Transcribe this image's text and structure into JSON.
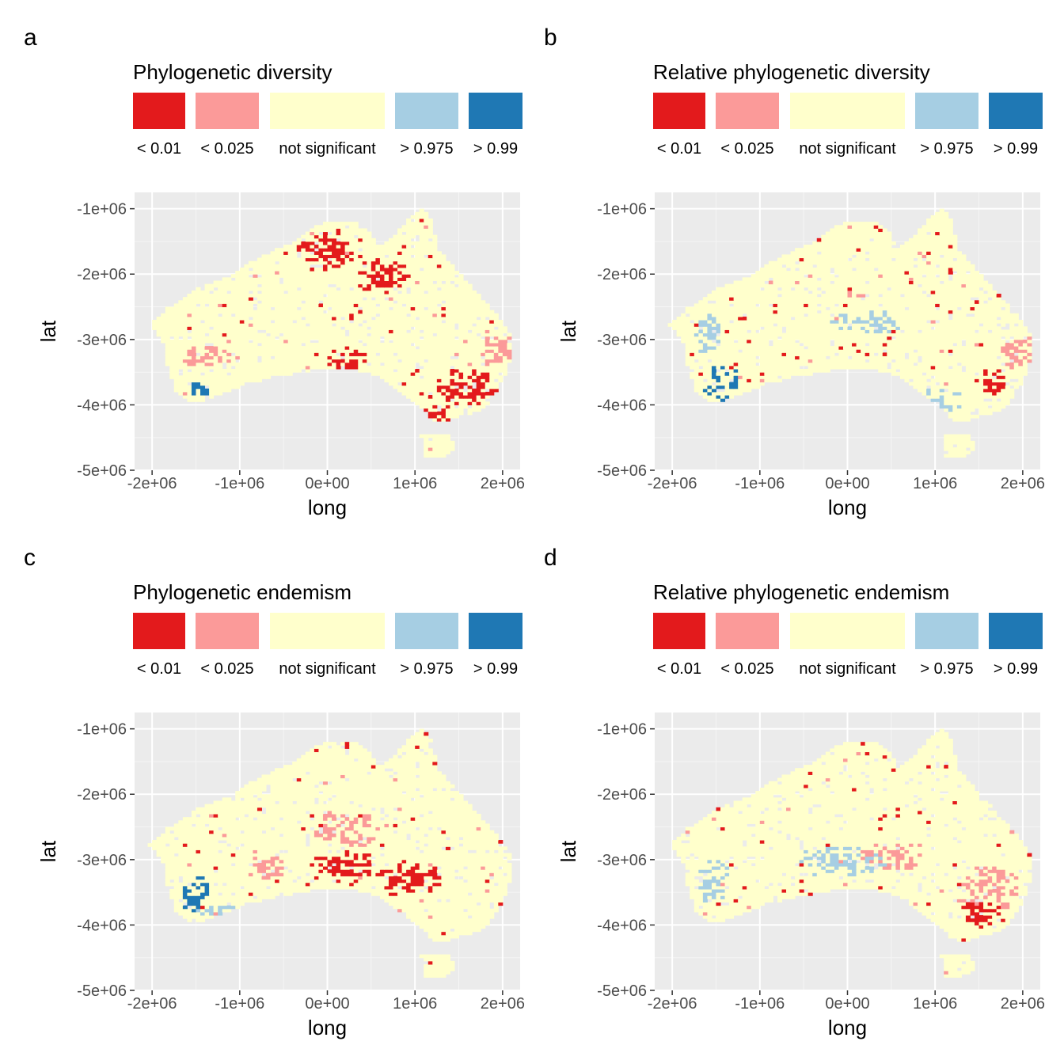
{
  "legend": {
    "labels": [
      "< 0.01",
      "< 0.025",
      "not significant",
      "> 0.975",
      "> 0.99"
    ],
    "colors": [
      "#e31a1c",
      "#fb9a99",
      "#ffffcc",
      "#a6cee3",
      "#1f78b4"
    ]
  },
  "chart_data": [
    {
      "type": "heatmap",
      "panel_letter": "a",
      "legend_title": "Phylogenetic diversity",
      "xlabel": "long",
      "ylabel": "lat",
      "x_ticks": [
        "-2e+06",
        "-1e+06",
        "0e+00",
        "1e+06",
        "2e+06"
      ],
      "y_ticks": [
        "-1e+06",
        "-2e+06",
        "-3e+06",
        "-4e+06",
        "-5e+06"
      ],
      "xlim": [
        -2200000,
        2200000
      ],
      "ylim": [
        -5000000,
        -750000
      ],
      "grid": true,
      "hotspots": [
        {
          "category": "< 0.01",
          "x": 0,
          "y": -1600000,
          "rx": 400000,
          "ry": 350000
        },
        {
          "category": "< 0.01",
          "x": 1550000,
          "y": -3700000,
          "rx": 400000,
          "ry": 300000
        },
        {
          "category": "< 0.025",
          "x": -1350000,
          "y": -3200000,
          "rx": 350000,
          "ry": 250000
        },
        {
          "category": "< 0.01",
          "x": 600000,
          "y": -2000000,
          "rx": 300000,
          "ry": 300000
        },
        {
          "category": "< 0.01",
          "x": 200000,
          "y": -3300000,
          "rx": 250000,
          "ry": 200000
        },
        {
          "category": "< 0.025",
          "x": 1900000,
          "y": -3100000,
          "rx": 200000,
          "ry": 300000
        },
        {
          "category": "> 0.99",
          "x": -1500000,
          "y": -3750000,
          "rx": 150000,
          "ry": 150000
        },
        {
          "category": "< 0.01",
          "x": 1200000,
          "y": -4100000,
          "rx": 250000,
          "ry": 150000
        }
      ]
    },
    {
      "type": "heatmap",
      "panel_letter": "b",
      "legend_title": "Relative phylogenetic diversity",
      "xlabel": "long",
      "ylabel": "lat",
      "x_ticks": [
        "-2e+06",
        "-1e+06",
        "0e+00",
        "1e+06",
        "2e+06"
      ],
      "y_ticks": [
        "-1e+06",
        "-2e+06",
        "-3e+06",
        "-4e+06",
        "-5e+06"
      ],
      "xlim": [
        -2200000,
        2200000
      ],
      "ylim": [
        -5000000,
        -750000
      ],
      "grid": true,
      "hotspots": [
        {
          "category": "> 0.99",
          "x": -1450000,
          "y": -3650000,
          "rx": 230000,
          "ry": 300000
        },
        {
          "category": "> 0.975",
          "x": -1600000,
          "y": -2900000,
          "rx": 200000,
          "ry": 350000
        },
        {
          "category": "> 0.975",
          "x": 200000,
          "y": -2700000,
          "rx": 450000,
          "ry": 200000
        },
        {
          "category": "> 0.975",
          "x": 1000000,
          "y": -3900000,
          "rx": 300000,
          "ry": 200000
        },
        {
          "category": "< 0.025",
          "x": 1900000,
          "y": -3200000,
          "rx": 200000,
          "ry": 250000
        },
        {
          "category": "< 0.01",
          "x": 1650000,
          "y": -3600000,
          "rx": 150000,
          "ry": 250000
        }
      ]
    },
    {
      "type": "heatmap",
      "panel_letter": "c",
      "legend_title": "Phylogenetic endemism",
      "xlabel": "long",
      "ylabel": "lat",
      "x_ticks": [
        "-2e+06",
        "-1e+06",
        "0e+00",
        "1e+06",
        "2e+06"
      ],
      "y_ticks": [
        "-1e+06",
        "-2e+06",
        "-3e+06",
        "-4e+06",
        "-5e+06"
      ],
      "xlim": [
        -2200000,
        2200000
      ],
      "ylim": [
        -5000000,
        -750000
      ],
      "grid": true,
      "hotspots": [
        {
          "category": "< 0.01",
          "x": 200000,
          "y": -3100000,
          "rx": 450000,
          "ry": 300000
        },
        {
          "category": "< 0.01",
          "x": 900000,
          "y": -3250000,
          "rx": 400000,
          "ry": 300000
        },
        {
          "category": "< 0.025",
          "x": 200000,
          "y": -2500000,
          "rx": 400000,
          "ry": 300000
        },
        {
          "category": "> 0.99",
          "x": -1550000,
          "y": -3500000,
          "rx": 200000,
          "ry": 300000
        },
        {
          "category": "> 0.975",
          "x": -1300000,
          "y": -3750000,
          "rx": 250000,
          "ry": 100000
        },
        {
          "category": "< 0.025",
          "x": -700000,
          "y": -3100000,
          "rx": 250000,
          "ry": 200000
        }
      ]
    },
    {
      "type": "heatmap",
      "panel_letter": "d",
      "legend_title": "Relative phylogenetic endemism",
      "xlabel": "long",
      "ylabel": "lat",
      "x_ticks": [
        "-2e+06",
        "-1e+06",
        "0e+00",
        "1e+06",
        "2e+06"
      ],
      "y_ticks": [
        "-1e+06",
        "-2e+06",
        "-3e+06",
        "-4e+06",
        "-5e+06"
      ],
      "xlim": [
        -2200000,
        2200000
      ],
      "ylim": [
        -5000000,
        -750000
      ],
      "grid": true,
      "hotspots": [
        {
          "category": "< 0.025",
          "x": 1600000,
          "y": -3400000,
          "rx": 350000,
          "ry": 400000
        },
        {
          "category": "< 0.01",
          "x": 1500000,
          "y": -3800000,
          "rx": 250000,
          "ry": 250000
        },
        {
          "category": "> 0.975",
          "x": -1550000,
          "y": -3300000,
          "rx": 200000,
          "ry": 400000
        },
        {
          "category": "> 0.975",
          "x": -100000,
          "y": -3000000,
          "rx": 600000,
          "ry": 250000
        },
        {
          "category": "< 0.025",
          "x": 500000,
          "y": -2900000,
          "rx": 400000,
          "ry": 250000
        }
      ]
    }
  ]
}
